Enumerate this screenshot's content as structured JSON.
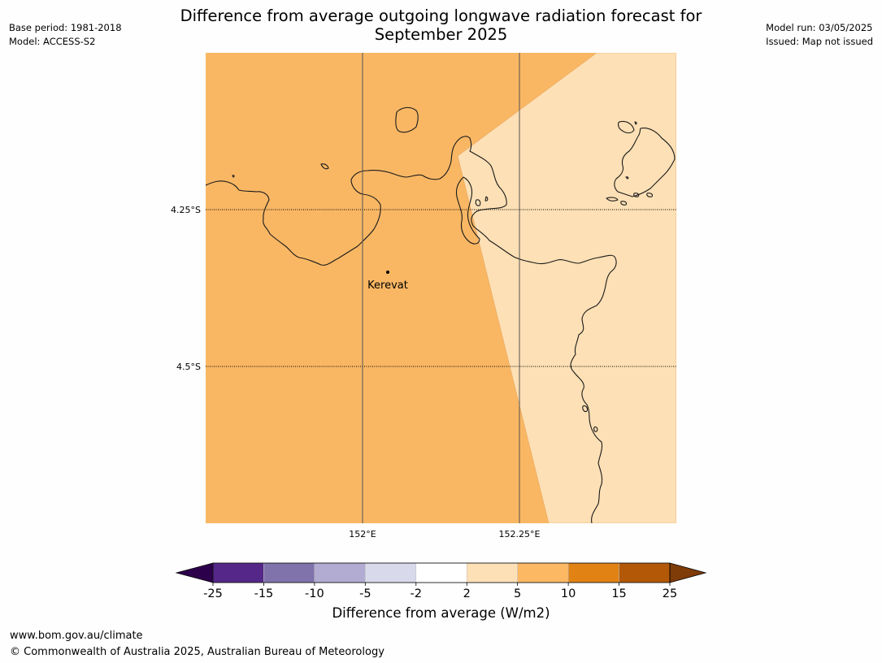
{
  "header": {
    "title_line1": "Difference from average outgoing longwave radiation forecast for",
    "title_line2": "September 2025",
    "base_period": "Base period: 1981-2018",
    "model": "Model: ACCESS-S2",
    "model_run": "Model run: 03/05/2025",
    "issued": "Issued: Map not issued"
  },
  "map": {
    "lat_labels": [
      "4.25°S",
      "4.5°S"
    ],
    "lon_labels": [
      "152°E",
      "152.25°E"
    ],
    "place": {
      "name": "Kerevat"
    },
    "fill_colors": {
      "west": "#f9b764",
      "east": "#fde0b5"
    }
  },
  "colorbar": {
    "label": "Difference from average (W/m2)",
    "ticks": [
      "-25",
      "-15",
      "-10",
      "-5",
      "-2",
      "2",
      "5",
      "10",
      "15",
      "25"
    ],
    "colors": [
      "#542788",
      "#8073ac",
      "#b2abd2",
      "#d8daeb",
      "#ffffff",
      "#fee0b6",
      "#fdb863",
      "#e08214",
      "#b35806"
    ],
    "extend_low_color": "#2d004b",
    "extend_high_color": "#7f3b08"
  },
  "footer": {
    "url": "www.bom.gov.au/climate",
    "copyright": "© Commonwealth of Australia 2025, Australian Bureau of Meteorology"
  }
}
